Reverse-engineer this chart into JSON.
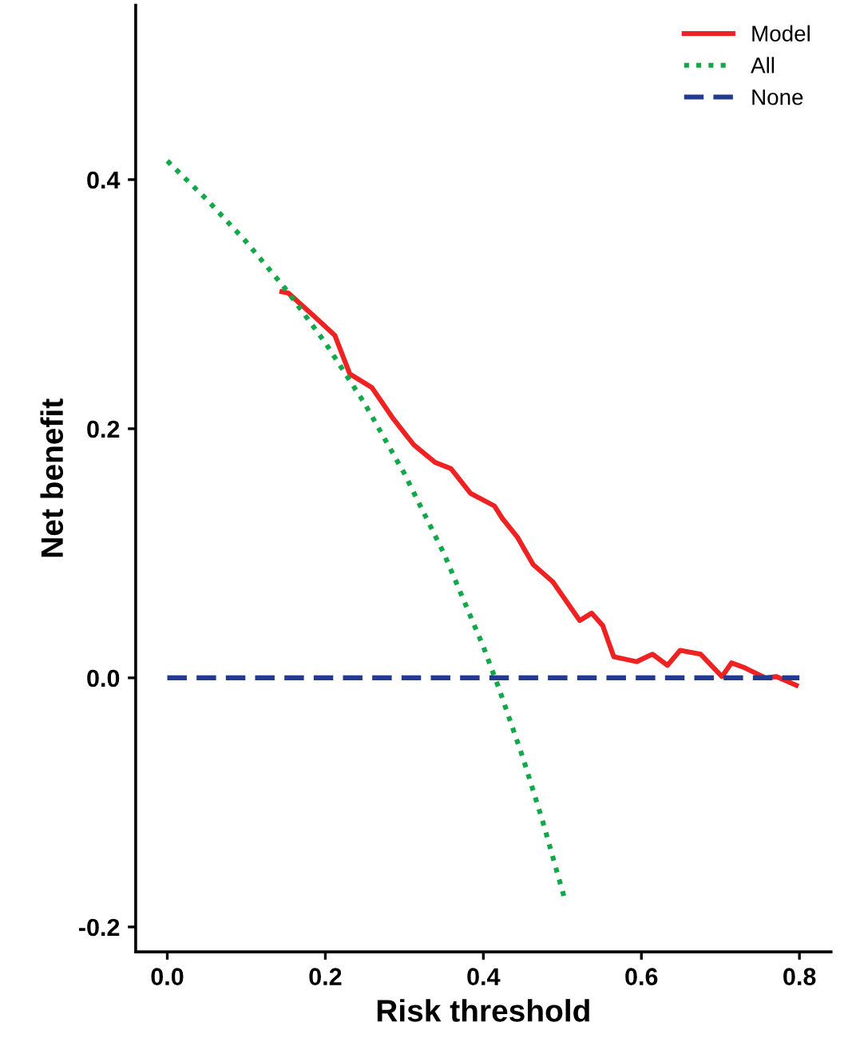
{
  "chart_data": {
    "type": "line",
    "xlabel": "Risk threshold",
    "ylabel": "Net benefit",
    "xlim": [
      -0.04,
      0.84
    ],
    "ylim": [
      -0.22,
      0.54
    ],
    "xticks": [
      {
        "value": 0,
        "label": "0.0"
      },
      0.2,
      0.4,
      0.6,
      0.8
    ],
    "yticks": [
      {
        "value": -0.2,
        "label": "-0.2"
      },
      {
        "value": 0,
        "label": "0.0"
      },
      0.2,
      0.4
    ],
    "grid": false,
    "legend": "top right",
    "series": [
      {
        "name": "Model",
        "color": "#ee2222",
        "line_style": "solid",
        "x": [
          0.145,
          0.153,
          0.188,
          0.212,
          0.231,
          0.259,
          0.286,
          0.312,
          0.339,
          0.359,
          0.384,
          0.414,
          0.424,
          0.443,
          0.463,
          0.488,
          0.522,
          0.537,
          0.551,
          0.565,
          0.594,
          0.614,
          0.633,
          0.649,
          0.675,
          0.702,
          0.714,
          0.731,
          0.757,
          0.771,
          0.796
        ],
        "values": [
          0.31,
          0.309,
          0.289,
          0.275,
          0.244,
          0.233,
          0.208,
          0.187,
          0.173,
          0.168,
          0.148,
          0.138,
          0.128,
          0.113,
          0.091,
          0.077,
          0.046,
          0.052,
          0.042,
          0.017,
          0.013,
          0.019,
          0.01,
          0.022,
          0.019,
          0.001,
          0.012,
          0.008,
          0.0,
          0.001,
          -0.006
        ]
      },
      {
        "name": "All",
        "color": "#11a84a",
        "line_style": "dotted",
        "x": [
          0,
          0.05,
          0.1,
          0.15,
          0.2,
          0.25,
          0.3,
          0.35,
          0.4,
          0.42,
          0.45,
          0.475,
          0.504
        ],
        "values": [
          0.415,
          0.384,
          0.35,
          0.312,
          0.269,
          0.22,
          0.164,
          0.1,
          0.025,
          -0.009,
          -0.064,
          -0.115,
          -0.18
        ]
      },
      {
        "name": "None",
        "color": "#223a8f",
        "line_style": "dashed",
        "x": [
          0,
          0.8
        ],
        "values": [
          0,
          0
        ]
      }
    ]
  }
}
